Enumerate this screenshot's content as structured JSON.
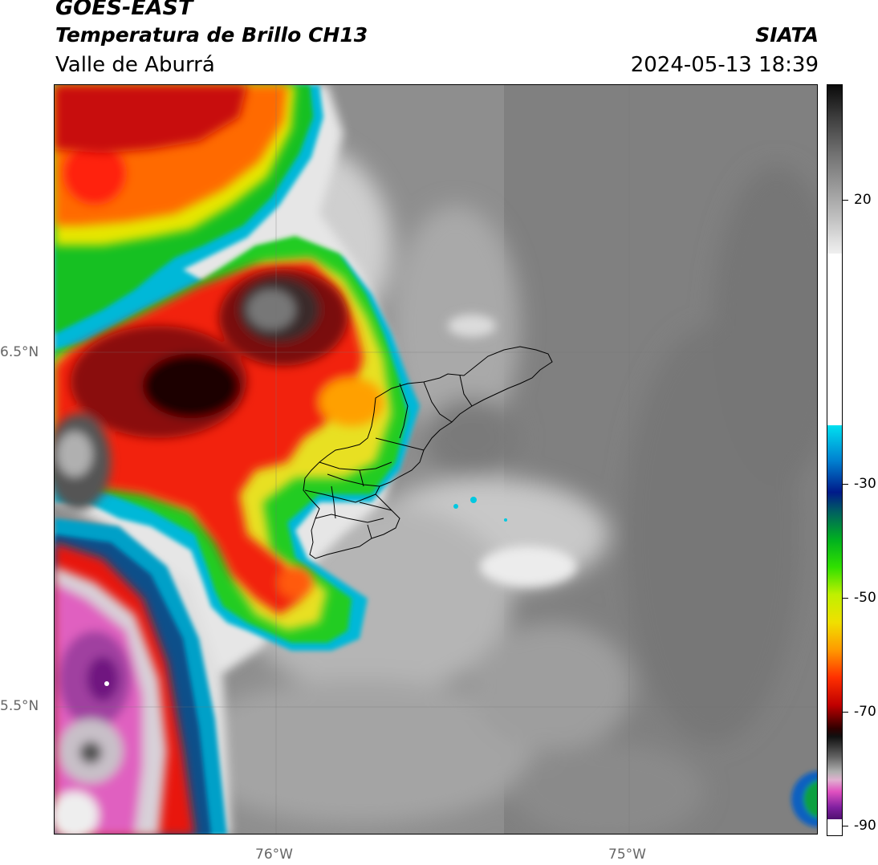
{
  "header": {
    "satellite": "GOES-EAST",
    "product": "Temperatura de Brillo CH13",
    "region": "Valle de Aburrá",
    "agency": "SIATA",
    "datetime": "2024-05-13 18:39"
  },
  "map": {
    "lat_labels": [
      "6.5°N",
      "5.5°N"
    ],
    "lon_labels": [
      "76°W",
      "75°W"
    ]
  },
  "colorbar": {
    "tick_labels": [
      "20",
      "-30",
      "-50",
      "-70",
      "-90"
    ],
    "min": -90,
    "max": 30
  }
}
